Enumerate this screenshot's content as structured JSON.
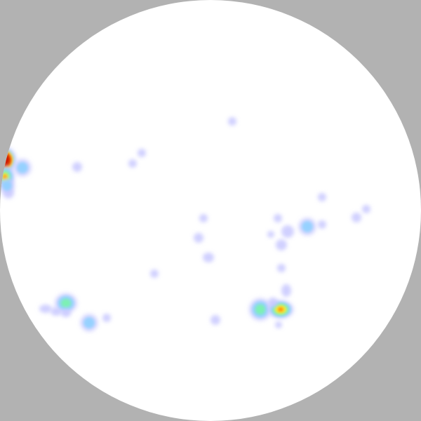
{
  "colors": {
    "background": "#b2b2b2",
    "disc": "#ffffff",
    "ramp": {
      "faint": "#c8c8ff",
      "low": "#8fd0ff",
      "mid": "#7df0b4",
      "warm": "#ffee33",
      "hot": "#ff7a00",
      "peak": "#cc1200"
    }
  },
  "hotspots": [
    {
      "id": "h01",
      "level": "peak"
    },
    {
      "id": "h02",
      "level": "warm"
    },
    {
      "id": "h03",
      "level": "low"
    },
    {
      "id": "h04",
      "level": "faint"
    },
    {
      "id": "h05",
      "level": "low"
    },
    {
      "id": "h06",
      "level": "faint"
    },
    {
      "id": "h07",
      "level": "faint"
    },
    {
      "id": "h08",
      "level": "faint"
    },
    {
      "id": "h09",
      "level": "faint"
    },
    {
      "id": "h10",
      "level": "faint"
    },
    {
      "id": "h11",
      "level": "faint"
    },
    {
      "id": "h12",
      "level": "faint"
    },
    {
      "id": "h13",
      "level": "faint"
    },
    {
      "id": "h14",
      "level": "faint"
    },
    {
      "id": "h15",
      "level": "faint"
    },
    {
      "id": "h16",
      "level": "low"
    },
    {
      "id": "h17",
      "level": "faint"
    },
    {
      "id": "h18",
      "level": "faint"
    },
    {
      "id": "h19",
      "level": "faint"
    },
    {
      "id": "h20",
      "level": "faint"
    },
    {
      "id": "h21",
      "level": "faint"
    },
    {
      "id": "h22",
      "level": "faint"
    },
    {
      "id": "h23",
      "level": "faint"
    },
    {
      "id": "h24",
      "level": "mid"
    },
    {
      "id": "h25",
      "level": "hot"
    },
    {
      "id": "h26",
      "level": "faint"
    },
    {
      "id": "h27",
      "level": "faint"
    },
    {
      "id": "h28",
      "level": "faint"
    },
    {
      "id": "h29",
      "level": "low"
    },
    {
      "id": "h30",
      "level": "faint"
    },
    {
      "id": "h31",
      "level": "faint"
    },
    {
      "id": "h32",
      "level": "mid"
    },
    {
      "id": "h33",
      "level": "faint"
    },
    {
      "id": "h34",
      "level": "faint"
    },
    {
      "id": "h35",
      "level": "faint"
    }
  ]
}
